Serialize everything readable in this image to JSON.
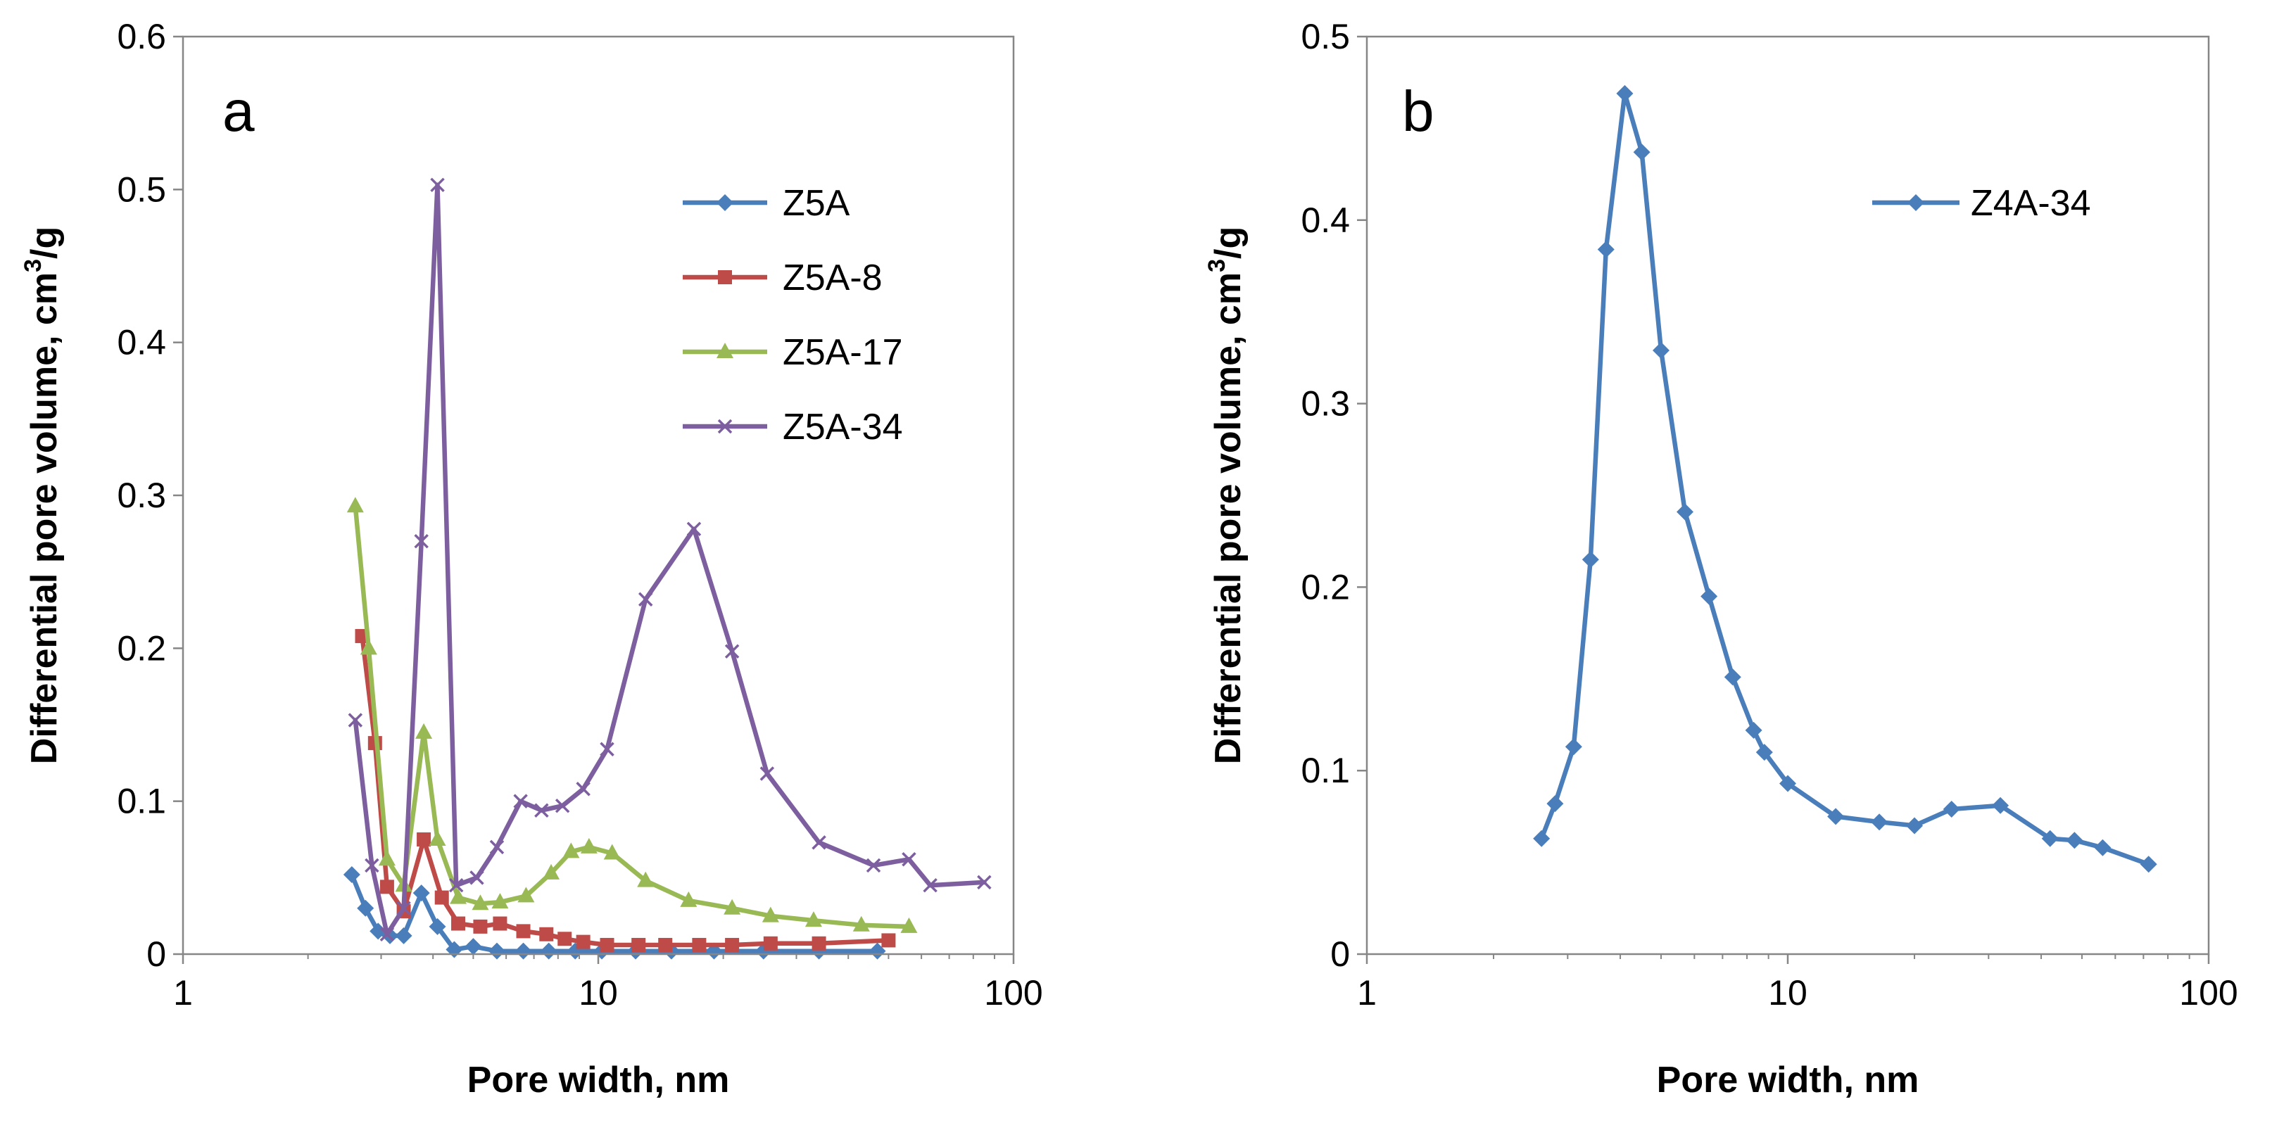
{
  "chart_data": [
    {
      "type": "line",
      "panel": "a",
      "xlabel": "Pore width, nm",
      "ylabel_main": "Differential pore volume, cm",
      "ylabel_sup": "3",
      "ylabel_tail": "/g",
      "xscale": "log",
      "xlim": [
        1,
        100
      ],
      "ylim": [
        0,
        0.6
      ],
      "xticks": [
        1,
        10,
        100
      ],
      "xtick_labels": [
        "1",
        "10",
        "100"
      ],
      "yticks": [
        0,
        0.1,
        0.2,
        0.3,
        0.4,
        0.5,
        0.6
      ],
      "ytick_labels": [
        "0",
        "0.1",
        "0.2",
        "0.3",
        "0.4",
        "0.5",
        "0.6"
      ],
      "grid": false,
      "legend_position": "top-right",
      "series": [
        {
          "name": "Z5A",
          "color": "#4a7ebb",
          "marker": "diamond",
          "x": [
            2.55,
            2.75,
            2.95,
            3.15,
            3.4,
            3.75,
            4.1,
            4.5,
            5.0,
            5.7,
            6.6,
            7.6,
            8.8,
            10.2,
            12.3,
            15,
            19,
            25,
            34,
            47
          ],
          "y": [
            0.052,
            0.03,
            0.015,
            0.012,
            0.012,
            0.04,
            0.018,
            0.003,
            0.005,
            0.002,
            0.002,
            0.002,
            0.002,
            0.002,
            0.002,
            0.002,
            0.002,
            0.002,
            0.002,
            0.002
          ]
        },
        {
          "name": "Z5A-8",
          "color": "#be4b48",
          "marker": "square",
          "x": [
            2.7,
            2.9,
            3.1,
            3.4,
            3.8,
            4.2,
            4.6,
            5.2,
            5.8,
            6.6,
            7.5,
            8.3,
            9.2,
            10.5,
            12.5,
            14.5,
            17.5,
            21,
            26,
            34,
            50
          ],
          "y": [
            0.208,
            0.138,
            0.044,
            0.028,
            0.075,
            0.037,
            0.02,
            0.018,
            0.02,
            0.015,
            0.013,
            0.01,
            0.008,
            0.006,
            0.006,
            0.006,
            0.006,
            0.006,
            0.007,
            0.007,
            0.009
          ]
        },
        {
          "name": "Z5A-17",
          "color": "#98b954",
          "marker": "triangle",
          "x": [
            2.6,
            2.8,
            3.1,
            3.4,
            3.8,
            4.1,
            4.6,
            5.2,
            5.8,
            6.7,
            7.7,
            8.6,
            9.5,
            10.8,
            13,
            16.5,
            21,
            26,
            33,
            43,
            56
          ],
          "y": [
            0.293,
            0.2,
            0.062,
            0.045,
            0.145,
            0.075,
            0.037,
            0.033,
            0.034,
            0.038,
            0.053,
            0.067,
            0.07,
            0.066,
            0.048,
            0.035,
            0.03,
            0.025,
            0.022,
            0.019,
            0.018
          ]
        },
        {
          "name": "Z5A-34",
          "color": "#7d5fa0",
          "marker": "x",
          "x": [
            2.6,
            2.85,
            3.1,
            3.4,
            3.75,
            4.1,
            4.55,
            5.1,
            5.7,
            6.5,
            7.3,
            8.2,
            9.2,
            10.5,
            13,
            17,
            21,
            25.5,
            34,
            46,
            56,
            63,
            85
          ],
          "y": [
            0.153,
            0.058,
            0.013,
            0.03,
            0.27,
            0.503,
            0.045,
            0.05,
            0.07,
            0.1,
            0.094,
            0.097,
            0.108,
            0.134,
            0.232,
            0.278,
            0.198,
            0.118,
            0.073,
            0.058,
            0.062,
            0.045,
            0.047
          ]
        }
      ]
    },
    {
      "type": "line",
      "panel": "b",
      "xlabel": "Pore width, nm",
      "ylabel_main": "Differential pore volume, cm",
      "ylabel_sup": "3",
      "ylabel_tail": "/g",
      "xscale": "log",
      "xlim": [
        1,
        100
      ],
      "ylim": [
        0,
        0.5
      ],
      "xticks": [
        1,
        10,
        100
      ],
      "xtick_labels": [
        "1",
        "10",
        "100"
      ],
      "yticks": [
        0,
        0.1,
        0.2,
        0.3,
        0.4,
        0.5
      ],
      "ytick_labels": [
        "0",
        "0.1",
        "0.2",
        "0.3",
        "0.4",
        "0.5"
      ],
      "grid": false,
      "legend_position": "top-right",
      "series": [
        {
          "name": "Z4A-34",
          "color": "#4a7ebb",
          "marker": "diamond",
          "x": [
            2.6,
            2.8,
            3.1,
            3.4,
            3.7,
            4.1,
            4.5,
            5.0,
            5.7,
            6.5,
            7.4,
            8.3,
            8.8,
            10,
            13,
            16.5,
            20,
            24.5,
            32,
            42,
            48,
            56,
            72
          ],
          "y": [
            0.063,
            0.082,
            0.113,
            0.215,
            0.384,
            0.469,
            0.437,
            0.329,
            0.241,
            0.195,
            0.151,
            0.122,
            0.11,
            0.093,
            0.075,
            0.072,
            0.07,
            0.079,
            0.081,
            0.063,
            0.062,
            0.058,
            0.049
          ]
        }
      ]
    }
  ]
}
